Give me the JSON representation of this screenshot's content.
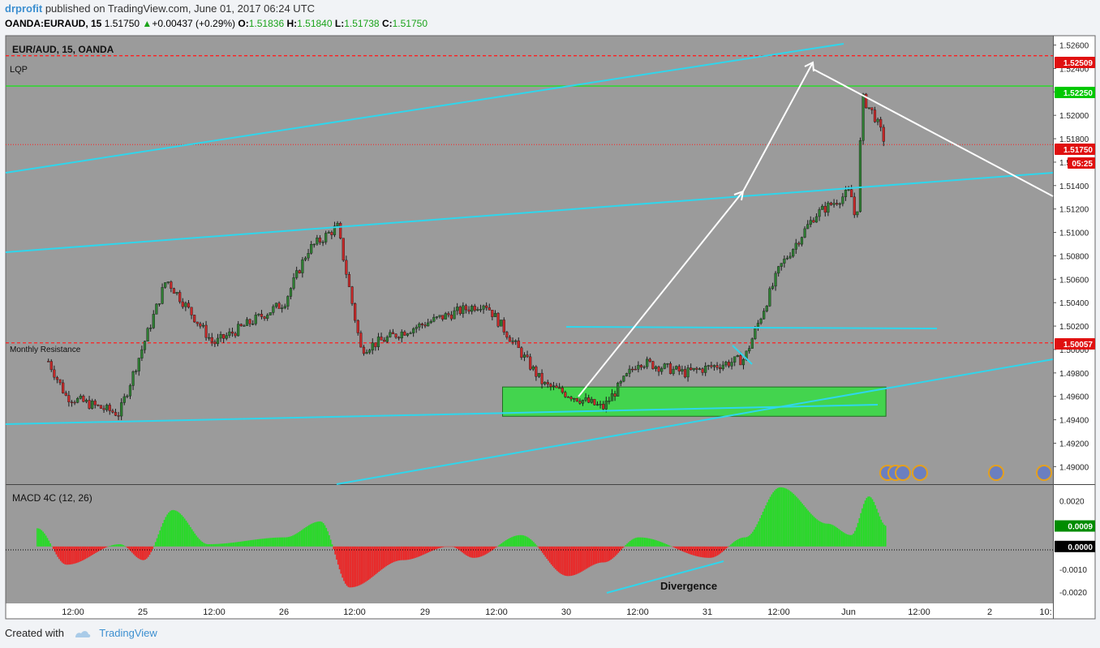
{
  "header": {
    "author": "drprofit",
    "published_text": " published on TradingView.com, June 01, 2017 06:24 UTC",
    "symbol": "OANDA:EURAUD, 15",
    "last": "1.51750",
    "change": "+0.00437 (+0.29%)",
    "o_label": "O:",
    "o": "1.51836",
    "h_label": "H:",
    "h": "1.51840",
    "l_label": "L:",
    "l": "1.51738",
    "c_label": "C:",
    "c": "1.51750"
  },
  "footer": {
    "created_with": "Created with",
    "brand": "TradingView"
  },
  "colors": {
    "background": "#9b9b9b",
    "up_candle": "#2e7d32",
    "down_candle": "#c62828",
    "channel_line": "#2fd6ec",
    "arrow": "#ffffff",
    "dashed_red": "#ff2020",
    "green_level": "#22e022",
    "zone_fill": "#3fd84a",
    "macd_up": "#22dd22",
    "macd_down": "#ee2222"
  },
  "chart_data": [
    {
      "type": "candlestick",
      "title": "EUR/AUD, 15, OANDA",
      "watermark_label": "LQP",
      "annotation": "Monthly Resistance",
      "ylim": [
        1.4885,
        1.5268
      ],
      "y_ticks": [
        "1.52600",
        "1.52400",
        "1.52200",
        "1.52000",
        "1.51800",
        "1.51600",
        "1.51400",
        "1.51200",
        "1.51000",
        "1.50800",
        "1.50600",
        "1.50400",
        "1.50200",
        "1.50000",
        "1.49800",
        "1.49600",
        "1.49400",
        "1.49200",
        "1.49000"
      ],
      "x_ticks": [
        "12:00",
        "25",
        "12:00",
        "26",
        "12:00",
        "29",
        "12:00",
        "30",
        "12:00",
        "31",
        "12:00",
        "Jun",
        "12:00",
        "2",
        "10:"
      ],
      "price_labels": [
        {
          "value": "1.52509",
          "kind": "red"
        },
        {
          "value": "1.52250",
          "kind": "green"
        },
        {
          "value": "1.51750",
          "kind": "red"
        },
        {
          "value": "05:25",
          "kind": "red"
        },
        {
          "value": "1.50057",
          "kind": "red"
        }
      ],
      "horizontal_levels": [
        {
          "price": 1.52509,
          "style": "dashed-red"
        },
        {
          "price": 1.5225,
          "style": "green"
        },
        {
          "price": 1.5175,
          "style": "dotted-red"
        },
        {
          "price": 1.50057,
          "style": "dashed-red"
        }
      ],
      "demand_zone": {
        "x_start": "30 00:00",
        "x_end": "Jun 06:00",
        "price_low": 1.4943,
        "price_high": 1.4968
      },
      "close_path": [
        {
          "t": "24 08:00",
          "p": 1.499
        },
        {
          "t": "24 11:00",
          "p": 1.496
        },
        {
          "t": "24 20:00",
          "p": 1.4945
        },
        {
          "t": "25 04:00",
          "p": 1.506
        },
        {
          "t": "25 12:00",
          "p": 1.5005
        },
        {
          "t": "26 00:00",
          "p": 1.504
        },
        {
          "t": "26 04:00",
          "p": 1.5085
        },
        {
          "t": "26 09:00",
          "p": 1.5105
        },
        {
          "t": "26 13:00",
          "p": 1.5
        },
        {
          "t": "26 20:00",
          "p": 1.5015
        },
        {
          "t": "29 04:00",
          "p": 1.503
        },
        {
          "t": "29 10:00",
          "p": 1.504
        },
        {
          "t": "29 20:00",
          "p": 1.497
        },
        {
          "t": "30 06:00",
          "p": 1.495
        },
        {
          "t": "30 12:00",
          "p": 1.499
        },
        {
          "t": "30 20:00",
          "p": 1.498
        },
        {
          "t": "31 06:00",
          "p": 1.4992
        },
        {
          "t": "31 12:00",
          "p": 1.507
        },
        {
          "t": "31 18:00",
          "p": 1.5115
        },
        {
          "t": "Jun 00:00",
          "p": 1.5135
        },
        {
          "t": "Jun 01:00",
          "p": 1.5105
        },
        {
          "t": "Jun 02:00",
          "p": 1.5215
        },
        {
          "t": "Jun 04:00",
          "p": 1.52
        },
        {
          "t": "Jun 06:00",
          "p": 1.5175
        }
      ]
    },
    {
      "type": "bar",
      "title": "MACD 4C (12, 26)",
      "annotation": "Divergence",
      "ylim": [
        -0.0025,
        0.0027
      ],
      "y_ticks": [
        "0.0020",
        "-0.0010",
        "-0.0020"
      ],
      "value_labels": [
        {
          "value": "0.0009",
          "kind": "green"
        },
        {
          "value": "0.0000",
          "kind": "zero"
        }
      ],
      "histogram_path": [
        {
          "t": "24 06:00",
          "v": 0.0008
        },
        {
          "t": "24 11:00",
          "v": -0.0008
        },
        {
          "t": "24 20:00",
          "v": 0.0001
        },
        {
          "t": "25 00:00",
          "v": -0.0006
        },
        {
          "t": "25 05:00",
          "v": 0.0016
        },
        {
          "t": "25 11:00",
          "v": 0.0001
        },
        {
          "t": "26 00:00",
          "v": 0.0004
        },
        {
          "t": "26 06:00",
          "v": 0.0011
        },
        {
          "t": "26 11:00",
          "v": -0.0018
        },
        {
          "t": "26 20:00",
          "v": -0.0006
        },
        {
          "t": "29 04:00",
          "v": 0.0
        },
        {
          "t": "29 08:00",
          "v": -0.0005
        },
        {
          "t": "29 16:00",
          "v": 0.0005
        },
        {
          "t": "30 00:00",
          "v": -0.0013
        },
        {
          "t": "30 06:00",
          "v": -0.0007
        },
        {
          "t": "30 12:00",
          "v": 0.0004
        },
        {
          "t": "31 00:00",
          "v": -0.0005
        },
        {
          "t": "31 06:00",
          "v": 0.0004
        },
        {
          "t": "31 12:00",
          "v": 0.0026
        },
        {
          "t": "31 20:00",
          "v": 0.001
        },
        {
          "t": "Jun 00:00",
          "v": 0.0005
        },
        {
          "t": "Jun 03:00",
          "v": 0.0022
        },
        {
          "t": "Jun 06:00",
          "v": 0.0009
        }
      ]
    }
  ]
}
